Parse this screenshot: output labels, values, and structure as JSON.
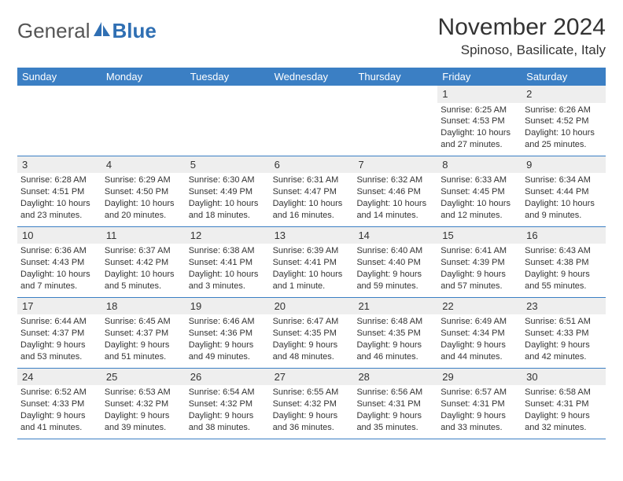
{
  "logo": {
    "text1": "General",
    "text2": "Blue",
    "accent": "#2f6fb3"
  },
  "title": "November 2024",
  "location": "Spinoso, Basilicate, Italy",
  "colors": {
    "header_bg": "#3b7fc4",
    "header_text": "#ffffff",
    "daynum_bg": "#eeeeee",
    "border": "#3b7fc4",
    "text": "#333333"
  },
  "day_names": [
    "Sunday",
    "Monday",
    "Tuesday",
    "Wednesday",
    "Thursday",
    "Friday",
    "Saturday"
  ],
  "weeks": [
    [
      {
        "n": "",
        "sr": "",
        "ss": "",
        "dl": ""
      },
      {
        "n": "",
        "sr": "",
        "ss": "",
        "dl": ""
      },
      {
        "n": "",
        "sr": "",
        "ss": "",
        "dl": ""
      },
      {
        "n": "",
        "sr": "",
        "ss": "",
        "dl": ""
      },
      {
        "n": "",
        "sr": "",
        "ss": "",
        "dl": ""
      },
      {
        "n": "1",
        "sr": "Sunrise: 6:25 AM",
        "ss": "Sunset: 4:53 PM",
        "dl": "Daylight: 10 hours and 27 minutes."
      },
      {
        "n": "2",
        "sr": "Sunrise: 6:26 AM",
        "ss": "Sunset: 4:52 PM",
        "dl": "Daylight: 10 hours and 25 minutes."
      }
    ],
    [
      {
        "n": "3",
        "sr": "Sunrise: 6:28 AM",
        "ss": "Sunset: 4:51 PM",
        "dl": "Daylight: 10 hours and 23 minutes."
      },
      {
        "n": "4",
        "sr": "Sunrise: 6:29 AM",
        "ss": "Sunset: 4:50 PM",
        "dl": "Daylight: 10 hours and 20 minutes."
      },
      {
        "n": "5",
        "sr": "Sunrise: 6:30 AM",
        "ss": "Sunset: 4:49 PM",
        "dl": "Daylight: 10 hours and 18 minutes."
      },
      {
        "n": "6",
        "sr": "Sunrise: 6:31 AM",
        "ss": "Sunset: 4:47 PM",
        "dl": "Daylight: 10 hours and 16 minutes."
      },
      {
        "n": "7",
        "sr": "Sunrise: 6:32 AM",
        "ss": "Sunset: 4:46 PM",
        "dl": "Daylight: 10 hours and 14 minutes."
      },
      {
        "n": "8",
        "sr": "Sunrise: 6:33 AM",
        "ss": "Sunset: 4:45 PM",
        "dl": "Daylight: 10 hours and 12 minutes."
      },
      {
        "n": "9",
        "sr": "Sunrise: 6:34 AM",
        "ss": "Sunset: 4:44 PM",
        "dl": "Daylight: 10 hours and 9 minutes."
      }
    ],
    [
      {
        "n": "10",
        "sr": "Sunrise: 6:36 AM",
        "ss": "Sunset: 4:43 PM",
        "dl": "Daylight: 10 hours and 7 minutes."
      },
      {
        "n": "11",
        "sr": "Sunrise: 6:37 AM",
        "ss": "Sunset: 4:42 PM",
        "dl": "Daylight: 10 hours and 5 minutes."
      },
      {
        "n": "12",
        "sr": "Sunrise: 6:38 AM",
        "ss": "Sunset: 4:41 PM",
        "dl": "Daylight: 10 hours and 3 minutes."
      },
      {
        "n": "13",
        "sr": "Sunrise: 6:39 AM",
        "ss": "Sunset: 4:41 PM",
        "dl": "Daylight: 10 hours and 1 minute."
      },
      {
        "n": "14",
        "sr": "Sunrise: 6:40 AM",
        "ss": "Sunset: 4:40 PM",
        "dl": "Daylight: 9 hours and 59 minutes."
      },
      {
        "n": "15",
        "sr": "Sunrise: 6:41 AM",
        "ss": "Sunset: 4:39 PM",
        "dl": "Daylight: 9 hours and 57 minutes."
      },
      {
        "n": "16",
        "sr": "Sunrise: 6:43 AM",
        "ss": "Sunset: 4:38 PM",
        "dl": "Daylight: 9 hours and 55 minutes."
      }
    ],
    [
      {
        "n": "17",
        "sr": "Sunrise: 6:44 AM",
        "ss": "Sunset: 4:37 PM",
        "dl": "Daylight: 9 hours and 53 minutes."
      },
      {
        "n": "18",
        "sr": "Sunrise: 6:45 AM",
        "ss": "Sunset: 4:37 PM",
        "dl": "Daylight: 9 hours and 51 minutes."
      },
      {
        "n": "19",
        "sr": "Sunrise: 6:46 AM",
        "ss": "Sunset: 4:36 PM",
        "dl": "Daylight: 9 hours and 49 minutes."
      },
      {
        "n": "20",
        "sr": "Sunrise: 6:47 AM",
        "ss": "Sunset: 4:35 PM",
        "dl": "Daylight: 9 hours and 48 minutes."
      },
      {
        "n": "21",
        "sr": "Sunrise: 6:48 AM",
        "ss": "Sunset: 4:35 PM",
        "dl": "Daylight: 9 hours and 46 minutes."
      },
      {
        "n": "22",
        "sr": "Sunrise: 6:49 AM",
        "ss": "Sunset: 4:34 PM",
        "dl": "Daylight: 9 hours and 44 minutes."
      },
      {
        "n": "23",
        "sr": "Sunrise: 6:51 AM",
        "ss": "Sunset: 4:33 PM",
        "dl": "Daylight: 9 hours and 42 minutes."
      }
    ],
    [
      {
        "n": "24",
        "sr": "Sunrise: 6:52 AM",
        "ss": "Sunset: 4:33 PM",
        "dl": "Daylight: 9 hours and 41 minutes."
      },
      {
        "n": "25",
        "sr": "Sunrise: 6:53 AM",
        "ss": "Sunset: 4:32 PM",
        "dl": "Daylight: 9 hours and 39 minutes."
      },
      {
        "n": "26",
        "sr": "Sunrise: 6:54 AM",
        "ss": "Sunset: 4:32 PM",
        "dl": "Daylight: 9 hours and 38 minutes."
      },
      {
        "n": "27",
        "sr": "Sunrise: 6:55 AM",
        "ss": "Sunset: 4:32 PM",
        "dl": "Daylight: 9 hours and 36 minutes."
      },
      {
        "n": "28",
        "sr": "Sunrise: 6:56 AM",
        "ss": "Sunset: 4:31 PM",
        "dl": "Daylight: 9 hours and 35 minutes."
      },
      {
        "n": "29",
        "sr": "Sunrise: 6:57 AM",
        "ss": "Sunset: 4:31 PM",
        "dl": "Daylight: 9 hours and 33 minutes."
      },
      {
        "n": "30",
        "sr": "Sunrise: 6:58 AM",
        "ss": "Sunset: 4:31 PM",
        "dl": "Daylight: 9 hours and 32 minutes."
      }
    ]
  ]
}
